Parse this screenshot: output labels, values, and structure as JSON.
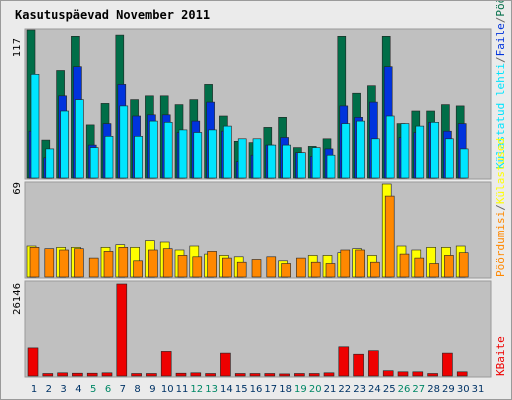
{
  "title": "Kasutuspäevad November 2011",
  "colors": {
    "visits": "#006e48",
    "pages": "#0033dd",
    "hits": "#00e5ff",
    "bytes": "#ee0000",
    "uniq": "#ffff00",
    "visits2": "#ff8800",
    "weekend": "#008866",
    "weekday": "#003366",
    "title": "#0000aa",
    "panel": "#c0c0c0"
  },
  "labels": {
    "visits": "Pöördumisi",
    "pages": "Faile",
    "hits": "Külastatud lehti",
    "unique": "Külastused",
    "bytes": "KBaite",
    "sep1": "/",
    "sep2": "/",
    "sep3": "/"
  },
  "chart_data": [
    {
      "type": "bar",
      "panel": "top",
      "ymax_label": "117",
      "ylim": [
        0,
        117
      ],
      "categories": [
        "1",
        "2",
        "3",
        "4",
        "5",
        "6",
        "7",
        "8",
        "9",
        "10",
        "11",
        "12",
        "13",
        "14",
        "15",
        "16",
        "17",
        "18",
        "19",
        "20",
        "21",
        "22",
        "23",
        "24",
        "25",
        "26",
        "27",
        "28",
        "29",
        "30",
        "31"
      ],
      "weekend_days": [
        "5",
        "6",
        "12",
        "13",
        "19",
        "20",
        "26",
        "27"
      ],
      "series": [
        {
          "name": "Pöördumisi",
          "values": [
            117,
            30,
            85,
            112,
            42,
            59,
            113,
            62,
            65,
            65,
            58,
            62,
            74,
            49,
            29,
            28,
            40,
            48,
            24,
            25,
            31,
            112,
            67,
            73,
            112,
            43,
            53,
            53,
            58,
            57,
            0
          ]
        },
        {
          "name": "Faile",
          "values": [
            37,
            16,
            65,
            88,
            26,
            43,
            74,
            49,
            50,
            50,
            36,
            45,
            60,
            37,
            13,
            18,
            26,
            32,
            20,
            17,
            23,
            57,
            48,
            60,
            88,
            32,
            36,
            44,
            37,
            43,
            0
          ]
        },
        {
          "name": "Külastatud lehti",
          "values": [
            82,
            23,
            53,
            62,
            24,
            33,
            57,
            33,
            45,
            44,
            38,
            36,
            38,
            41,
            31,
            31,
            26,
            26,
            20,
            24,
            18,
            43,
            45,
            31,
            49,
            43,
            41,
            44,
            31,
            23,
            0
          ]
        }
      ]
    },
    {
      "type": "bar",
      "panel": "middle",
      "ymax_label": "69",
      "ylim": [
        0,
        69
      ],
      "categories": [
        "1",
        "2",
        "3",
        "4",
        "5",
        "6",
        "7",
        "8",
        "9",
        "10",
        "11",
        "12",
        "13",
        "14",
        "15",
        "16",
        "17",
        "18",
        "19",
        "20",
        "21",
        "22",
        "23",
        "24",
        "25",
        "26",
        "27",
        "28",
        "29",
        "30",
        "31"
      ],
      "weekend_days": [
        "5",
        "6",
        "12",
        "13",
        "19",
        "20",
        "26",
        "27"
      ],
      "series": [
        {
          "name": "Külastused",
          "values": [
            23,
            0,
            22,
            22,
            0,
            22,
            24,
            22,
            27,
            26,
            20,
            23,
            17,
            16,
            15,
            0,
            0,
            12,
            0,
            16,
            16,
            18,
            21,
            16,
            69,
            23,
            20,
            22,
            22,
            23,
            0
          ]
        },
        {
          "name": "Pöördumisi",
          "values": [
            22,
            21,
            20,
            21,
            14,
            19,
            22,
            12,
            20,
            21,
            16,
            15,
            19,
            14,
            11,
            13,
            15,
            10,
            14,
            11,
            10,
            20,
            20,
            11,
            60,
            17,
            14,
            10,
            16,
            18,
            0
          ]
        }
      ]
    },
    {
      "type": "bar",
      "panel": "bottom",
      "ymax_label": "26146",
      "ylim": [
        0,
        26146
      ],
      "categories": [
        "1",
        "2",
        "3",
        "4",
        "5",
        "6",
        "7",
        "8",
        "9",
        "10",
        "11",
        "12",
        "13",
        "14",
        "15",
        "16",
        "17",
        "18",
        "19",
        "20",
        "21",
        "22",
        "23",
        "24",
        "25",
        "26",
        "27",
        "28",
        "29",
        "30",
        "31"
      ],
      "weekend_days": [
        "5",
        "6",
        "12",
        "13",
        "19",
        "20",
        "26",
        "27"
      ],
      "series": [
        {
          "name": "KBaite",
          "values": [
            8000,
            700,
            900,
            800,
            800,
            900,
            26146,
            700,
            700,
            7000,
            800,
            900,
            700,
            6500,
            700,
            700,
            700,
            600,
            700,
            700,
            900,
            8300,
            6200,
            7200,
            1500,
            1200,
            1200,
            700,
            6500,
            1200,
            0
          ]
        }
      ]
    }
  ]
}
